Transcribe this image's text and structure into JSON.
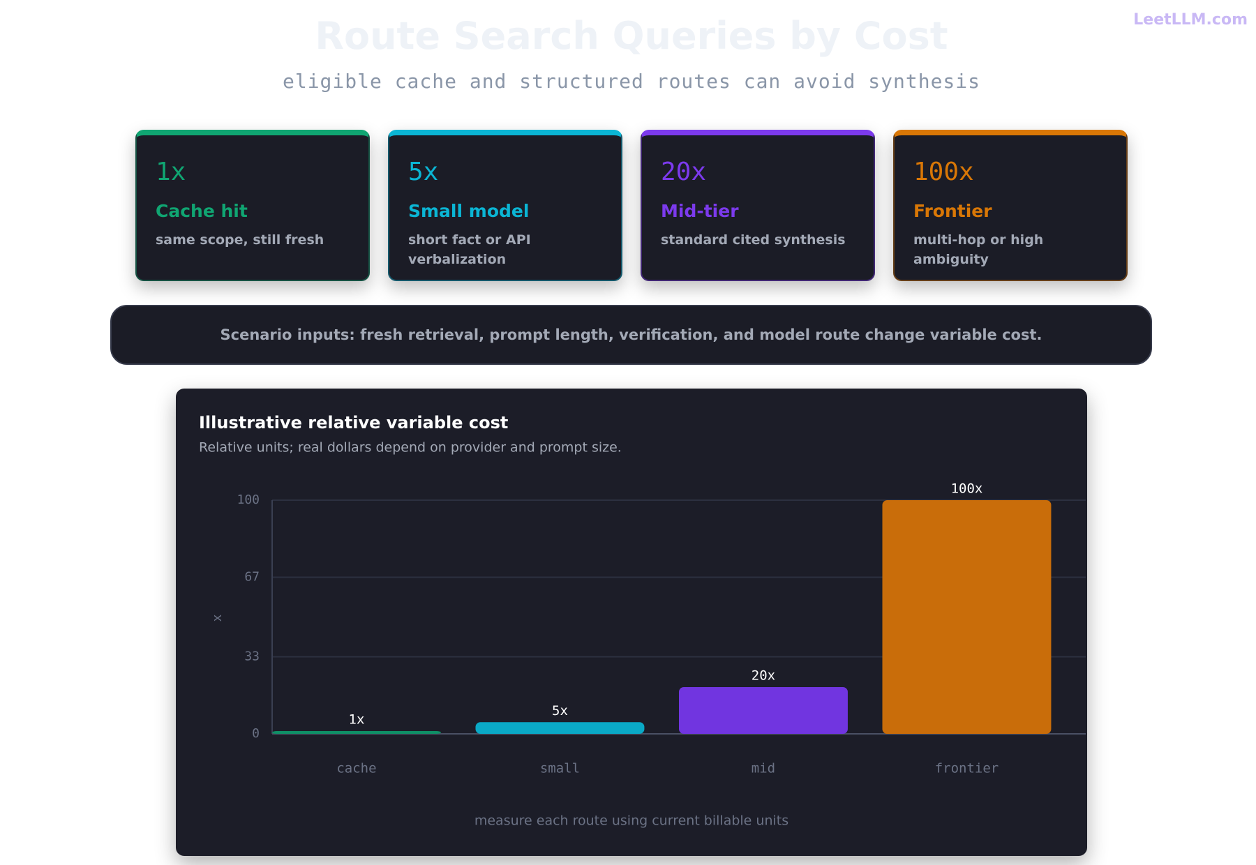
{
  "logo": "LeetLLM.com",
  "header": {
    "title": "Route Search Queries by Cost",
    "subtitle": "eligible cache and structured routes can avoid synthesis"
  },
  "cards": [
    {
      "value": "1x",
      "title": "Cache hit",
      "description": "same scope, still fresh",
      "color": "#10a572"
    },
    {
      "value": "5x",
      "title": "Small model",
      "description": "short fact or API verbalization",
      "color": "#0bb5d4"
    },
    {
      "value": "20x",
      "title": "Mid-tier",
      "description": "standard cited synthesis",
      "color": "#7c3aed"
    },
    {
      "value": "100x",
      "title": "Frontier",
      "description": "multi-hop or high ambiguity",
      "color": "#d97706"
    }
  ],
  "banner": "Scenario inputs: fresh retrieval, prompt length, verification, and model route change variable cost.",
  "chart_data": {
    "type": "bar",
    "title": "Illustrative relative variable cost",
    "subtitle": "Relative units; real dollars depend on provider and prompt size.",
    "y_label": "x",
    "categories": [
      "cache",
      "small",
      "mid",
      "frontier"
    ],
    "values": [
      1,
      5,
      20,
      100
    ],
    "value_labels": [
      "1x",
      "5x",
      "20x",
      "100x"
    ],
    "colors": [
      "#0f8f66",
      "#0aa9c6",
      "#7135e0",
      "#c96d0a"
    ],
    "ylim": [
      0,
      100
    ],
    "yticks": [
      0,
      33,
      67,
      100
    ],
    "grid": true,
    "annotation": "measure each route using current billable units"
  }
}
